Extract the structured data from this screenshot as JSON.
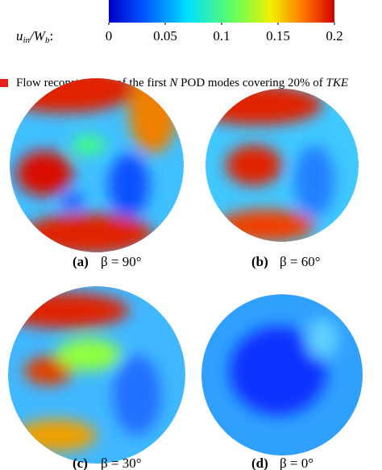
{
  "chart_data": {
    "type": "colorbar",
    "label_parts": [
      "u",
      "in",
      "/W",
      "b",
      ":"
    ],
    "zlim": [
      0,
      0.2
    ],
    "zticks": [
      0,
      0.05,
      0.1,
      0.15,
      0.2
    ]
  },
  "legend": {
    "parts": [
      "Flow reconstruction of the first ",
      "N",
      " POD modes covering 20% of ",
      "TKE"
    ]
  },
  "panels": [
    {
      "tag": "(a)",
      "caption": "β = 90°"
    },
    {
      "tag": "(b)",
      "caption": "β = 60°"
    },
    {
      "tag": "(c)",
      "caption": "β = 30°"
    },
    {
      "tag": "(d)",
      "caption": "β = 0°"
    }
  ]
}
